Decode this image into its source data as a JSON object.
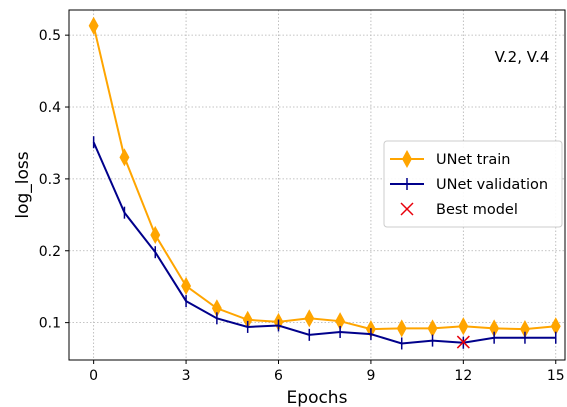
{
  "chart_data": {
    "type": "line",
    "xlabel": "Epochs",
    "ylabel": "log_loss",
    "xlim": [
      -0.8,
      15.3
    ],
    "ylim": [
      0.048,
      0.535
    ],
    "xticks": [
      0,
      3,
      6,
      9,
      12,
      15
    ],
    "yticks": [
      0.1,
      0.2,
      0.3,
      0.4,
      0.5
    ],
    "grid": true,
    "legend_position": "right",
    "annotation": "V.2, V.4",
    "series": [
      {
        "name": "UNet train",
        "color": "#ffa500",
        "marker": "thin_diamond",
        "x": [
          0,
          1,
          2,
          3,
          4,
          5,
          6,
          7,
          8,
          9,
          10,
          11,
          12,
          13,
          14,
          15
        ],
        "y": [
          0.513,
          0.33,
          0.222,
          0.151,
          0.12,
          0.104,
          0.101,
          0.106,
          0.102,
          0.091,
          0.092,
          0.092,
          0.095,
          0.092,
          0.091,
          0.095
        ]
      },
      {
        "name": "UNet validation",
        "color": "#00008b",
        "marker": "vline",
        "x": [
          0,
          1,
          2,
          3,
          4,
          5,
          6,
          7,
          8,
          9,
          10,
          11,
          12,
          13,
          14,
          15
        ],
        "y": [
          0.351,
          0.253,
          0.198,
          0.13,
          0.106,
          0.094,
          0.096,
          0.083,
          0.087,
          0.084,
          0.071,
          0.075,
          0.072,
          0.079,
          0.079,
          0.079
        ]
      },
      {
        "name": "Best model",
        "color": "#e8000b",
        "marker": "x",
        "x": [
          12
        ],
        "y": [
          0.073
        ]
      }
    ]
  }
}
